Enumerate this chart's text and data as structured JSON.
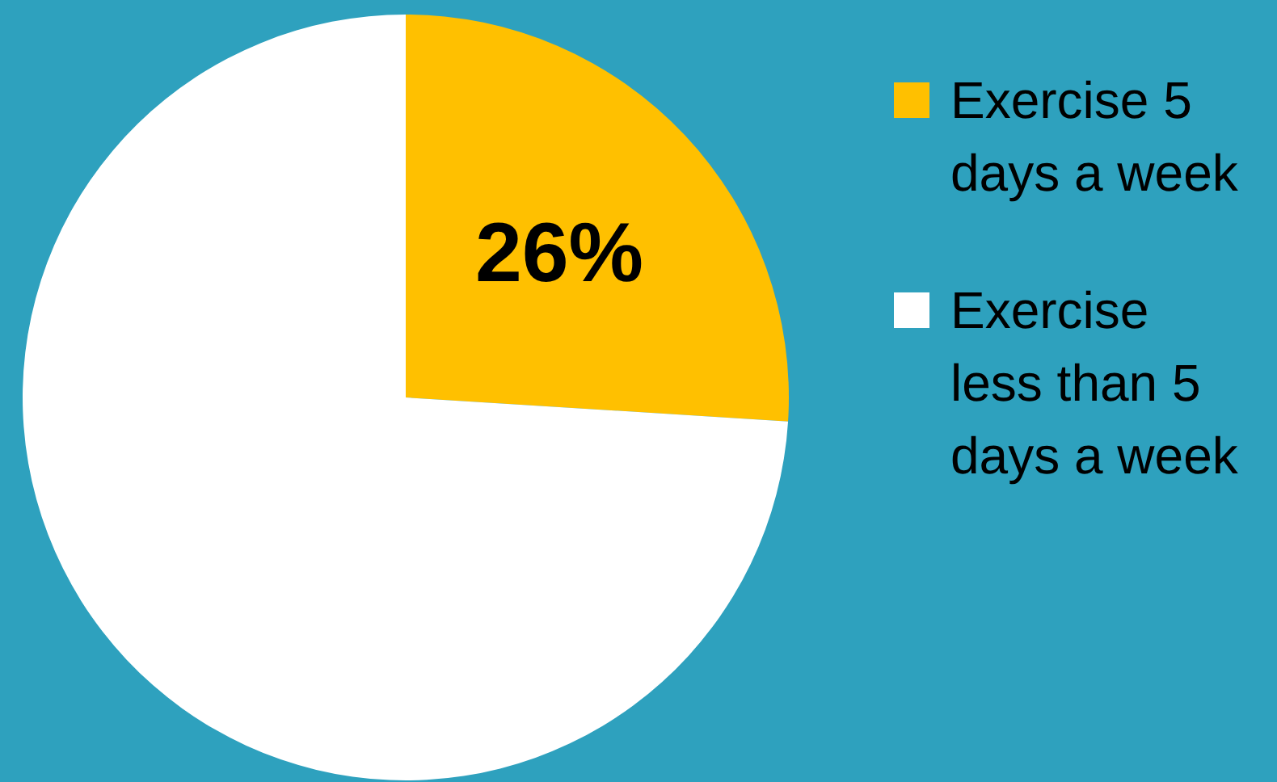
{
  "chart_data": {
    "type": "pie",
    "categories": [
      "Exercise 5 days a week",
      "Exercise less than 5 days a week"
    ],
    "values": [
      26,
      74
    ],
    "colors": [
      "#ffc000",
      "#ffffff"
    ],
    "value_labels": [
      "26%",
      null
    ],
    "legend": "right"
  }
}
